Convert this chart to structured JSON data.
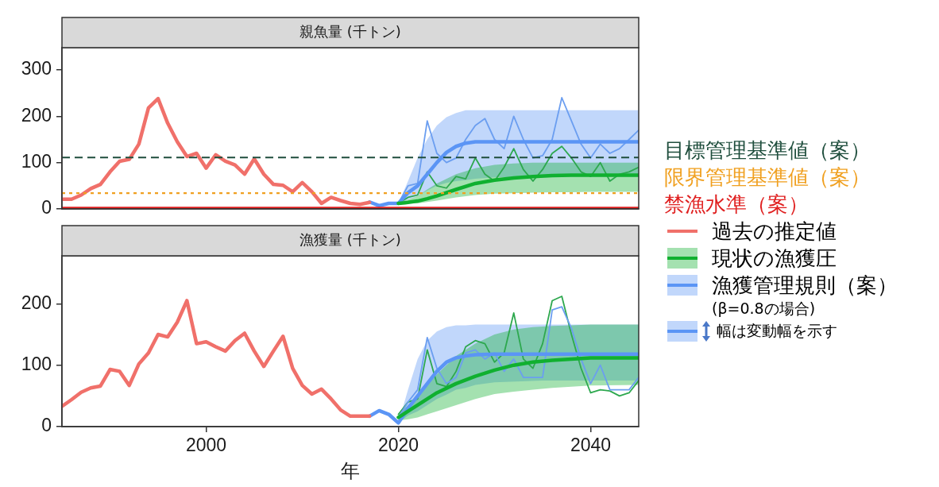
{
  "chart_data": [
    {
      "type": "line",
      "title": "親魚量 (千トン)",
      "xlim": [
        1985,
        2045
      ],
      "xticks": [
        2000,
        2020,
        2040
      ],
      "ylim": [
        0,
        348
      ],
      "yticks": [
        0,
        100,
        200,
        300
      ],
      "tick_labels": "y",
      "legend": "right",
      "annotations": [
        "(β=0.8の場合)",
        "幅は変動幅を示す"
      ],
      "ref_lines": [
        {
          "axis": "y",
          "value": 111,
          "label": "目標管理基準値（案）",
          "color": "#1f4e3d",
          "line_style": "dashed"
        },
        {
          "axis": "y",
          "value": 34,
          "label": "限界管理基準値（案）",
          "color": "#f0a020",
          "line_style": "dotted"
        },
        {
          "axis": "y",
          "value": 3,
          "label": "禁漁水準（案）",
          "color": "#e02020",
          "line_style": "solid"
        }
      ],
      "series": [
        {
          "name": "過去の推定値",
          "color": "#f0706a",
          "x": [
            1985,
            1986,
            1987,
            1988,
            1989,
            1990,
            1991,
            1992,
            1993,
            1994,
            1995,
            1996,
            1997,
            1998,
            1999,
            2000,
            2001,
            2002,
            2003,
            2004,
            2005,
            2006,
            2007,
            2008,
            2009,
            2010,
            2011,
            2012,
            2013,
            2014,
            2015,
            2016,
            2017
          ],
          "values": [
            21,
            21,
            30,
            44,
            53,
            80,
            103,
            107,
            140,
            218,
            238,
            185,
            145,
            113,
            120,
            88,
            117,
            103,
            95,
            75,
            108,
            75,
            53,
            51,
            37,
            57,
            37,
            12,
            25,
            18,
            12,
            10,
            14
          ]
        },
        {
          "color": "#6b9ef0",
          "x": [
            2020,
            2021,
            2022,
            2023,
            2024,
            2025,
            2026,
            2027,
            2028,
            2029,
            2030,
            2031,
            2032,
            2033,
            2034,
            2035,
            2036,
            2037,
            2038,
            2039,
            2040,
            2041,
            2042,
            2043,
            2044,
            2045
          ],
          "values": [
            12,
            50,
            55,
            190,
            120,
            100,
            110,
            150,
            180,
            195,
            150,
            130,
            200,
            150,
            110,
            115,
            150,
            240,
            190,
            140,
            110,
            140,
            120,
            130,
            150,
            170
          ]
        },
        {
          "color": "#2da84e",
          "x": [
            2020,
            2021,
            2022,
            2023,
            2024,
            2025,
            2026,
            2027,
            2028,
            2029,
            2030,
            2031,
            2032,
            2033,
            2034,
            2035,
            2036,
            2037,
            2038,
            2039,
            2040,
            2041,
            2042,
            2043,
            2044,
            2045
          ],
          "values": [
            12,
            25,
            30,
            80,
            50,
            45,
            70,
            65,
            110,
            75,
            60,
            90,
            130,
            85,
            60,
            85,
            120,
            135,
            110,
            80,
            70,
            100,
            60,
            75,
            80,
            90
          ]
        },
        {
          "name": "現状の漁獲圧",
          "color": "#10b030",
          "x": [
            2020,
            2021,
            2022,
            2023,
            2024,
            2026,
            2028,
            2030,
            2032,
            2034,
            2036,
            2038,
            2040,
            2045
          ],
          "values": [
            12,
            14,
            17,
            22,
            28,
            42,
            55,
            62,
            67,
            70,
            72,
            73,
            73,
            73
          ],
          "upper": [
            12,
            20,
            28,
            42,
            55,
            75,
            88,
            95,
            98,
            100,
            100,
            100,
            100,
            100
          ],
          "lower": [
            12,
            12,
            12,
            15,
            18,
            25,
            30,
            33,
            34,
            35,
            36,
            36,
            37,
            37
          ]
        },
        {
          "name": "漁獲管理規則（案）",
          "color": "#5b95f5",
          "x": [
            2017,
            2018,
            2019,
            2020,
            2021,
            2022,
            2023,
            2024,
            2025,
            2026,
            2027,
            2028,
            2030,
            2035,
            2040,
            2045
          ],
          "values": [
            15,
            7,
            12,
            12,
            35,
            50,
            75,
            100,
            122,
            135,
            142,
            145,
            145,
            145,
            145,
            145
          ],
          "upper": [
            15,
            7,
            12,
            12,
            60,
            110,
            150,
            180,
            198,
            207,
            213,
            213,
            213,
            213,
            213,
            213
          ],
          "lower": [
            15,
            7,
            12,
            12,
            20,
            28,
            40,
            50,
            56,
            60,
            62,
            65,
            68,
            70,
            70,
            70
          ]
        }
      ]
    },
    {
      "type": "line",
      "title": "漁獲量 (千トン)",
      "xlabel": "年",
      "xlim": [
        1985,
        2045
      ],
      "xticks": [
        2000,
        2020,
        2040
      ],
      "ylim": [
        0,
        278
      ],
      "yticks": [
        0,
        100,
        200
      ],
      "series": [
        {
          "color": "#f0706a",
          "x": [
            1985,
            1986,
            1987,
            1988,
            1989,
            1990,
            1991,
            1992,
            1993,
            1994,
            1995,
            1996,
            1997,
            1998,
            1999,
            2000,
            2001,
            2002,
            2003,
            2004,
            2005,
            2006,
            2007,
            2008,
            2009,
            2010,
            2011,
            2012,
            2013,
            2014,
            2015,
            2016,
            2017
          ],
          "values": [
            33,
            44,
            56,
            63,
            66,
            93,
            90,
            67,
            102,
            120,
            150,
            146,
            170,
            205,
            135,
            138,
            130,
            123,
            140,
            152,
            123,
            98,
            123,
            147,
            95,
            67,
            53,
            61,
            45,
            27,
            17,
            17,
            17
          ]
        },
        {
          "color": "#6b9ef0",
          "x": [
            2020,
            2021,
            2022,
            2023,
            2024,
            2025,
            2026,
            2027,
            2028,
            2029,
            2030,
            2031,
            2032,
            2033,
            2034,
            2035,
            2036,
            2037,
            2038,
            2039,
            2040,
            2041,
            2042,
            2043,
            2044,
            2045
          ],
          "values": [
            15,
            40,
            60,
            145,
            95,
            70,
            80,
            120,
            125,
            110,
            120,
            90,
            110,
            80,
            80,
            80,
            190,
            195,
            160,
            110,
            70,
            100,
            60,
            60,
            60,
            80
          ]
        },
        {
          "color": "#2da84e",
          "x": [
            2020,
            2021,
            2022,
            2023,
            2024,
            2025,
            2026,
            2027,
            2028,
            2029,
            2030,
            2031,
            2032,
            2033,
            2034,
            2035,
            2036,
            2037,
            2038,
            2039,
            2040,
            2041,
            2042,
            2043,
            2044,
            2045
          ],
          "values": [
            20,
            40,
            45,
            125,
            70,
            65,
            90,
            130,
            140,
            135,
            105,
            120,
            185,
            110,
            95,
            135,
            205,
            212,
            150,
            95,
            55,
            60,
            58,
            50,
            55,
            75
          ]
        },
        {
          "color": "#10b030",
          "x": [
            2020,
            2021,
            2022,
            2023,
            2024,
            2026,
            2028,
            2030,
            2032,
            2034,
            2036,
            2038,
            2040,
            2045
          ],
          "values": [
            15,
            25,
            35,
            45,
            55,
            70,
            82,
            92,
            100,
            105,
            108,
            110,
            112,
            112
          ],
          "upper": [
            20,
            35,
            50,
            68,
            85,
            115,
            135,
            150,
            158,
            162,
            164,
            165,
            166,
            166
          ],
          "lower": [
            10,
            12,
            15,
            20,
            25,
            35,
            45,
            53,
            57,
            60,
            63,
            65,
            67,
            68
          ]
        },
        {
          "color": "#5b95f5",
          "x": [
            2017,
            2018,
            2019,
            2020,
            2021,
            2022,
            2023,
            2024,
            2025,
            2026,
            2027,
            2028,
            2030,
            2035,
            2040,
            2045
          ],
          "values": [
            17,
            26,
            20,
            6,
            30,
            50,
            70,
            90,
            105,
            112,
            115,
            117,
            118,
            118,
            118,
            118
          ],
          "upper": [
            17,
            26,
            20,
            6,
            60,
            110,
            140,
            155,
            162,
            165,
            165,
            166,
            166,
            166,
            166,
            166
          ],
          "lower": [
            17,
            26,
            20,
            6,
            18,
            25,
            35,
            45,
            52,
            60,
            63,
            68,
            72,
            75,
            75,
            75
          ]
        }
      ]
    }
  ]
}
